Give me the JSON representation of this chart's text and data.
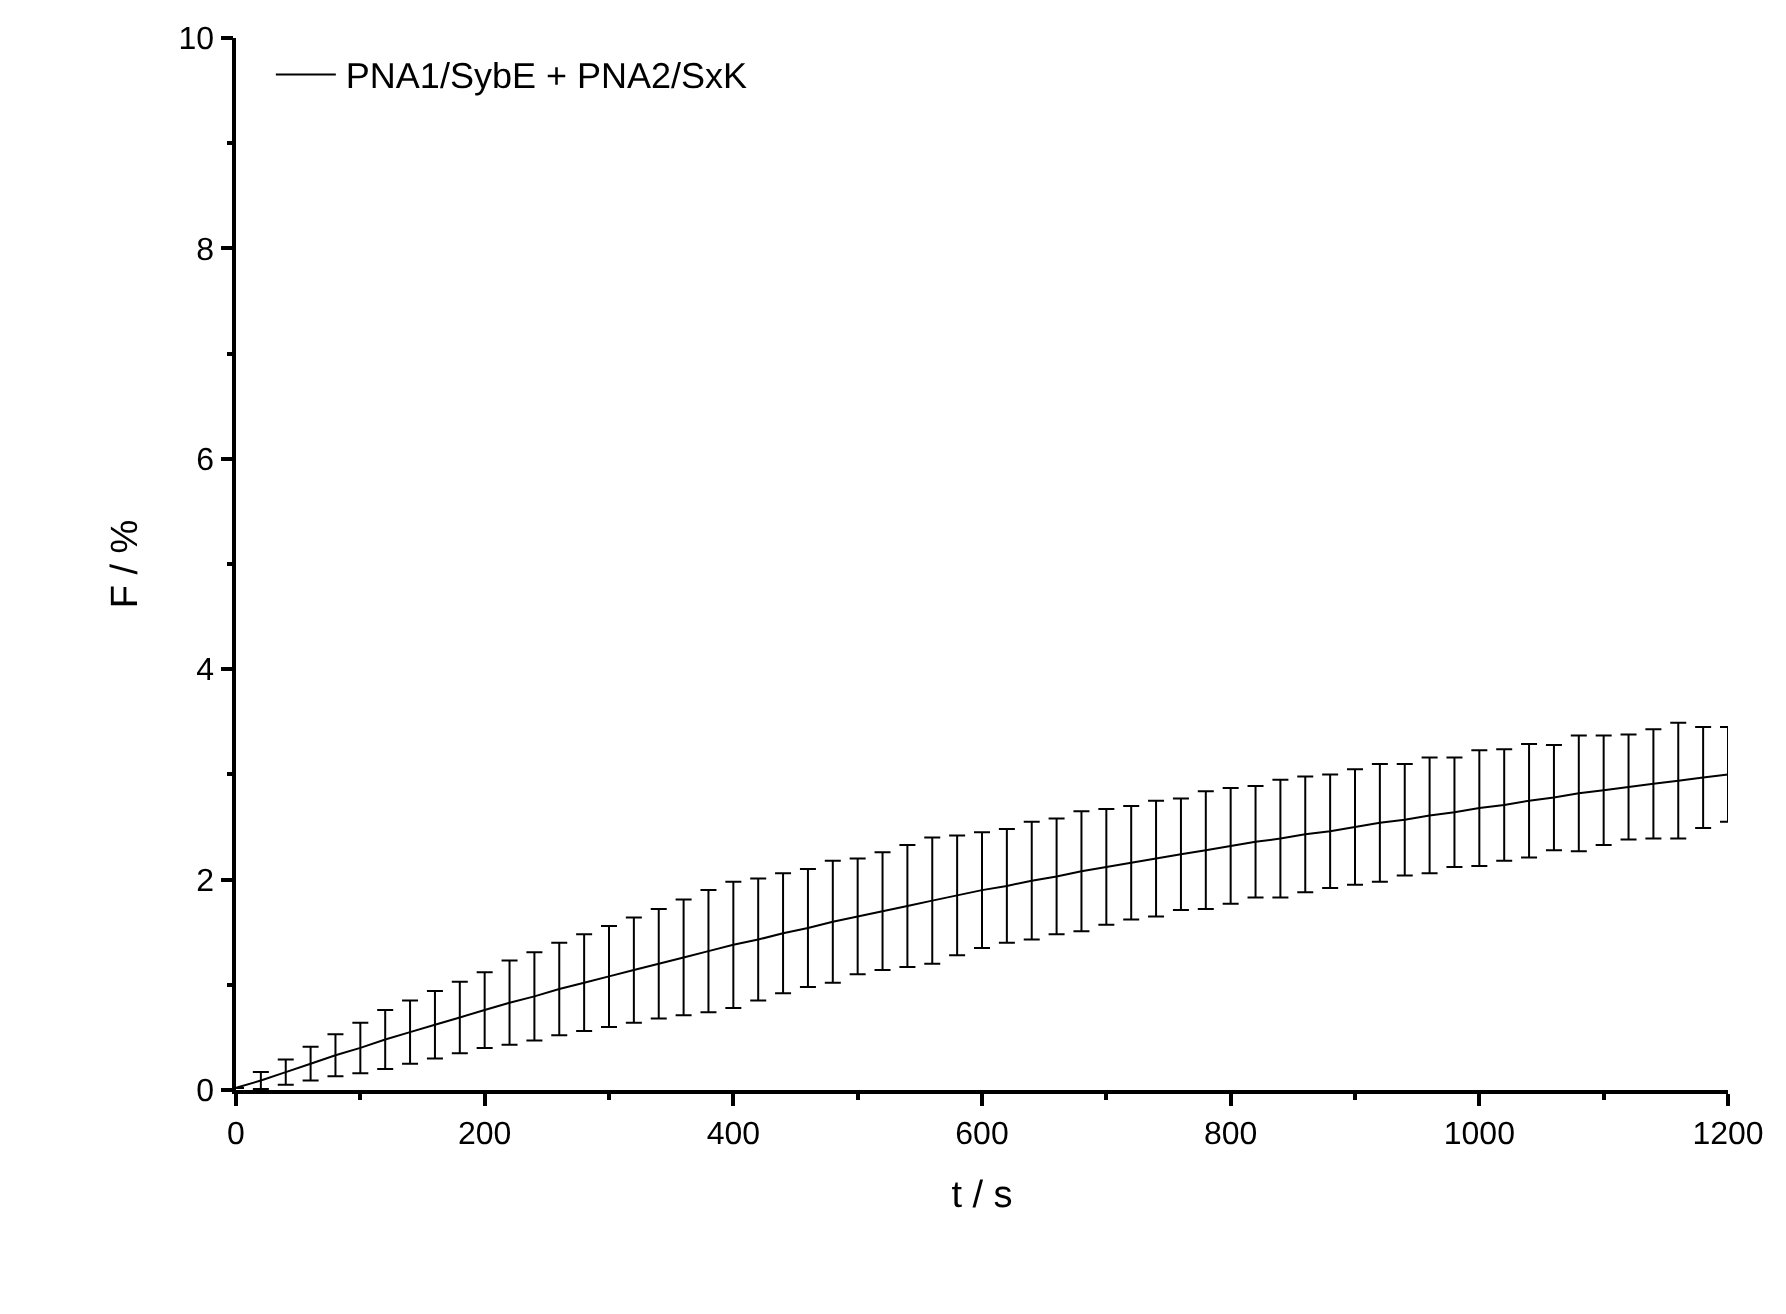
{
  "chart_data": {
    "type": "line",
    "xlabel": "t / s",
    "ylabel": "F / %",
    "x": [
      0,
      20,
      40,
      60,
      80,
      100,
      120,
      140,
      160,
      180,
      200,
      220,
      240,
      260,
      280,
      300,
      320,
      340,
      360,
      380,
      400,
      420,
      440,
      460,
      480,
      500,
      520,
      540,
      560,
      580,
      600,
      620,
      640,
      660,
      680,
      700,
      720,
      740,
      760,
      780,
      800,
      820,
      840,
      860,
      880,
      900,
      920,
      940,
      960,
      980,
      1000,
      1020,
      1040,
      1060,
      1080,
      1100,
      1120,
      1140,
      1160,
      1180,
      1200
    ],
    "series": [
      {
        "name": "PNA1/SybE + PNA2/SxK",
        "color": "#000000",
        "values": [
          0.02,
          0.09,
          0.17,
          0.25,
          0.33,
          0.4,
          0.48,
          0.55,
          0.62,
          0.69,
          0.76,
          0.83,
          0.89,
          0.96,
          1.02,
          1.08,
          1.14,
          1.2,
          1.26,
          1.32,
          1.38,
          1.43,
          1.49,
          1.54,
          1.6,
          1.65,
          1.7,
          1.75,
          1.8,
          1.85,
          1.9,
          1.94,
          1.99,
          2.03,
          2.08,
          2.12,
          2.16,
          2.2,
          2.24,
          2.28,
          2.32,
          2.36,
          2.39,
          2.43,
          2.46,
          2.5,
          2.54,
          2.57,
          2.61,
          2.64,
          2.68,
          2.71,
          2.75,
          2.78,
          2.82,
          2.85,
          2.88,
          2.91,
          2.94,
          2.97,
          3.0
        ],
        "errors": [
          null,
          0.08,
          0.12,
          0.16,
          0.2,
          0.24,
          0.28,
          0.3,
          0.32,
          0.34,
          0.36,
          0.4,
          0.42,
          0.44,
          0.46,
          0.48,
          0.5,
          0.52,
          0.55,
          0.58,
          0.6,
          0.58,
          0.57,
          0.56,
          0.58,
          0.55,
          0.56,
          0.58,
          0.6,
          0.57,
          0.55,
          0.54,
          0.56,
          0.55,
          0.57,
          0.55,
          0.54,
          0.55,
          0.53,
          0.56,
          0.55,
          0.53,
          0.56,
          0.55,
          0.54,
          0.55,
          0.56,
          0.53,
          0.55,
          0.52,
          0.55,
          0.53,
          0.54,
          0.5,
          0.55,
          0.52,
          0.5,
          0.52,
          0.55,
          0.48,
          0.45
        ]
      }
    ],
    "xlim": [
      0,
      1200
    ],
    "xticks": [
      0,
      200,
      400,
      600,
      800,
      1000,
      1200
    ],
    "ylim": [
      0,
      10
    ],
    "yticks": [
      0,
      2,
      4,
      6,
      8,
      10
    ],
    "legend": "top left",
    "grid": false,
    "marker": "none",
    "line_style": "solid"
  }
}
